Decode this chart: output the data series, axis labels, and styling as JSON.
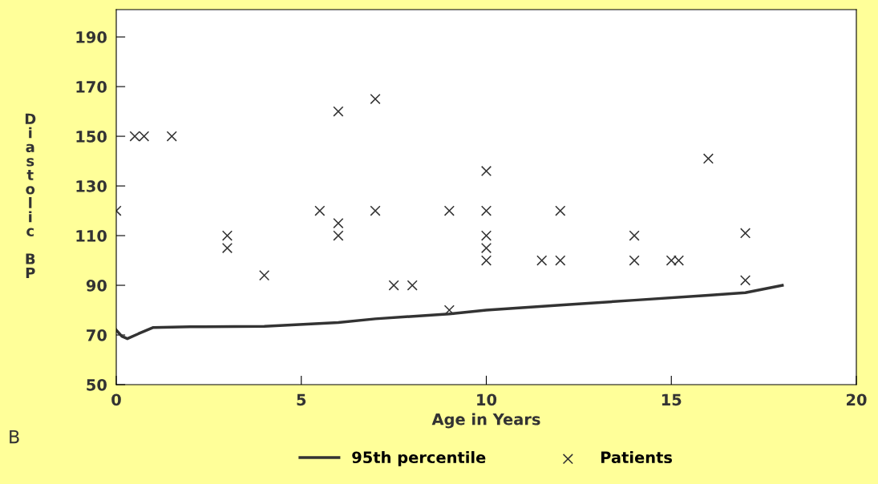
{
  "chart_data": {
    "type": "scatter",
    "xlabel": "Age in Years",
    "ylabel": "Diastolic BP",
    "xlim": [
      0,
      20
    ],
    "xticks": [
      0,
      5,
      10,
      15,
      20
    ],
    "ylim": [
      50,
      201
    ],
    "yticks": [
      50,
      70,
      90,
      110,
      130,
      150,
      170,
      190
    ],
    "grid": false,
    "legend": "bottom",
    "annotations": [
      "B"
    ],
    "series": [
      {
        "name": "95th percentile",
        "type": "line",
        "color": "#333333",
        "marker": "none",
        "line_style": "solid",
        "x": [
          0,
          0.15,
          0.3,
          0.6,
          1,
          2,
          4,
          6,
          7,
          9,
          10,
          12,
          14,
          16,
          17,
          18
        ],
        "values": [
          72,
          69.5,
          68.5,
          70.5,
          73,
          73.3,
          73.5,
          75,
          76.5,
          78.5,
          80,
          82,
          84,
          86,
          87,
          90
        ]
      },
      {
        "name": "Patients",
        "color": "#333333",
        "marker": "cross",
        "x": [
          0,
          0.5,
          0.75,
          1.5,
          3,
          3,
          4,
          5.5,
          6,
          6,
          6,
          7,
          7,
          7.5,
          8,
          9,
          9,
          10,
          10,
          10,
          10,
          10,
          11.5,
          12,
          12,
          14,
          14,
          15,
          15.2,
          16,
          17,
          17
        ],
        "values": [
          120,
          150,
          150,
          150,
          110,
          105,
          94,
          120,
          160,
          115,
          110,
          165,
          120,
          90,
          90,
          120,
          80,
          136,
          120,
          110,
          105,
          100,
          100,
          120,
          100,
          110,
          100,
          100,
          100,
          141,
          111,
          92
        ]
      }
    ]
  }
}
